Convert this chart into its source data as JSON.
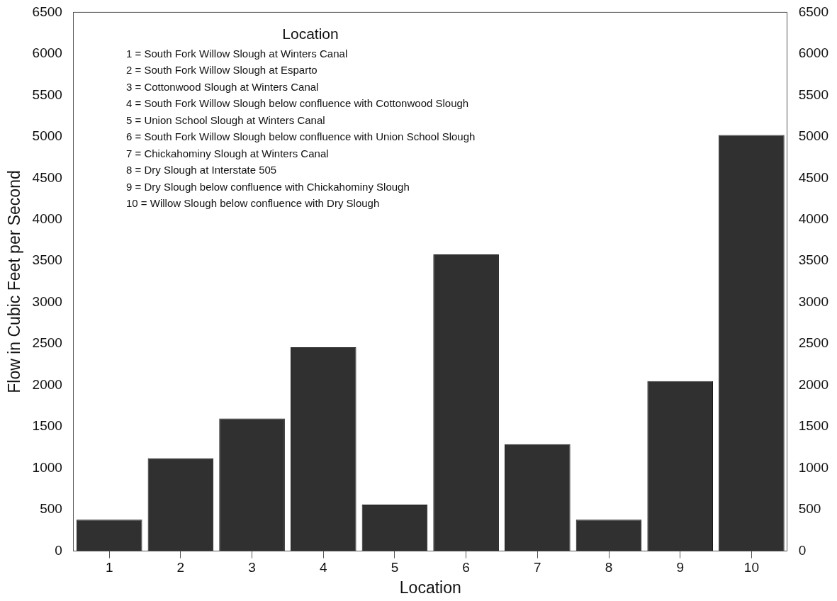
{
  "chart_data": {
    "type": "bar",
    "xlabel": "Location",
    "ylabel": "Flow in Cubic Feet per Second",
    "categories": [
      "1",
      "2",
      "3",
      "4",
      "5",
      "6",
      "7",
      "8",
      "9",
      "10"
    ],
    "values": [
      380,
      1120,
      1600,
      2460,
      560,
      3580,
      1290,
      380,
      2050,
      5020
    ],
    "color": "#303030",
    "ylim": [
      0,
      6500
    ],
    "yticks": [
      0,
      500,
      1000,
      1500,
      2000,
      2500,
      3000,
      3500,
      4000,
      4500,
      5000,
      5500,
      6000,
      6500
    ],
    "y2lim": [
      0,
      6500
    ],
    "y2ticks": [
      0,
      500,
      1000,
      1500,
      2000,
      2500,
      3000,
      3500,
      4000,
      4500,
      5000,
      5500,
      6000,
      6500
    ],
    "grid": false,
    "legend": false,
    "annotations": [
      "Location",
      "1 = South Fork Willow Slough at Winters Canal",
      "2 = South Fork Willow Slough at Esparto",
      "3 = Cottonwood Slough at Winters Canal",
      "4 = South Fork Willow Slough below confluence with Cottonwood Slough",
      "5 = Union School Slough at Winters Canal",
      "6 = South Fork Willow Slough below confluence with Union School Slough",
      "7 = Chickahominy Slough at Winters Canal",
      "8 = Dry Slough at Interstate 505",
      "9 = Dry Slough below confluence with Chickahominy Slough",
      "10 = Willow Slough below confluence with Dry Slough"
    ]
  }
}
